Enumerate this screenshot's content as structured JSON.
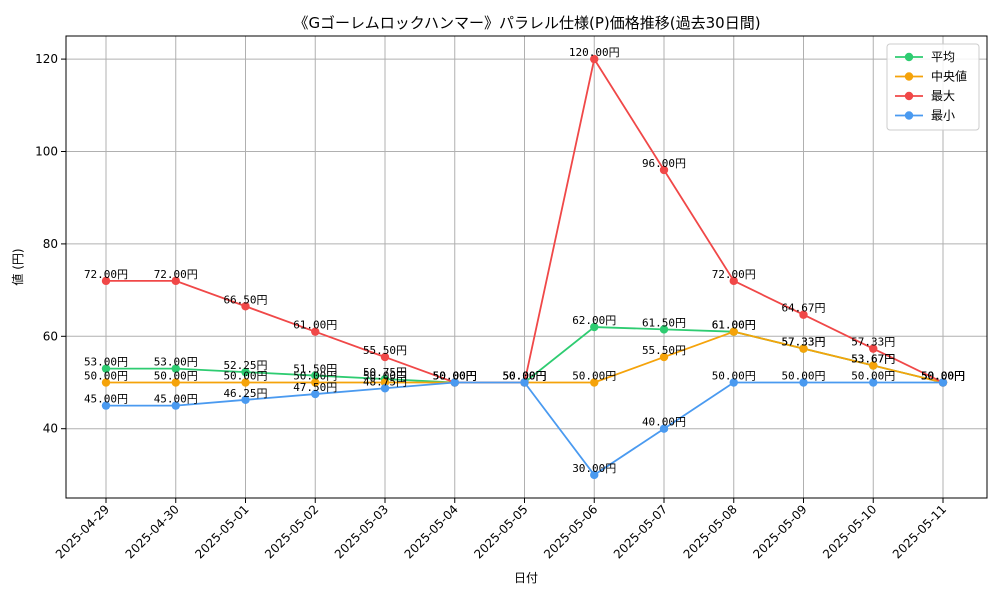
{
  "chart_data": {
    "type": "line",
    "title": "《Gゴーレムロックハンマー》パラレル仕様(P)価格推移(過去30日間)",
    "xlabel": "日付",
    "ylabel": "値 (円)",
    "ylim": [
      25,
      125
    ],
    "yticks": [
      40,
      60,
      80,
      100,
      120
    ],
    "grid": true,
    "legend_position": "top-right",
    "label_suffix": "円",
    "categories": [
      "2025-04-29",
      "2025-04-30",
      "2025-05-01",
      "2025-05-02",
      "2025-05-03",
      "2025-05-04",
      "2025-05-05",
      "2025-05-06",
      "2025-05-07",
      "2025-05-08",
      "2025-05-09",
      "2025-05-10",
      "2025-05-11"
    ],
    "series": [
      {
        "name": "平均",
        "color": "#2ecc71",
        "values": [
          53.0,
          53.0,
          52.25,
          51.5,
          50.75,
          50.0,
          50.0,
          62.0,
          61.5,
          61.0,
          57.33,
          53.67,
          50.0
        ]
      },
      {
        "name": "中央値",
        "color": "#f5a30a",
        "values": [
          50.0,
          50.0,
          50.0,
          50.0,
          50.0,
          50.0,
          50.0,
          50.0,
          55.5,
          61.0,
          57.33,
          53.67,
          50.0
        ]
      },
      {
        "name": "最大",
        "color": "#f04848",
        "values": [
          72.0,
          72.0,
          66.5,
          61.0,
          55.5,
          50.0,
          50.0,
          120.0,
          96.0,
          72.0,
          64.67,
          57.33,
          50.0
        ]
      },
      {
        "name": "最小",
        "color": "#4a9af0",
        "values": [
          45.0,
          45.0,
          46.25,
          47.5,
          48.75,
          50.0,
          50.0,
          30.0,
          40.0,
          50.0,
          50.0,
          50.0,
          50.0
        ]
      }
    ]
  }
}
